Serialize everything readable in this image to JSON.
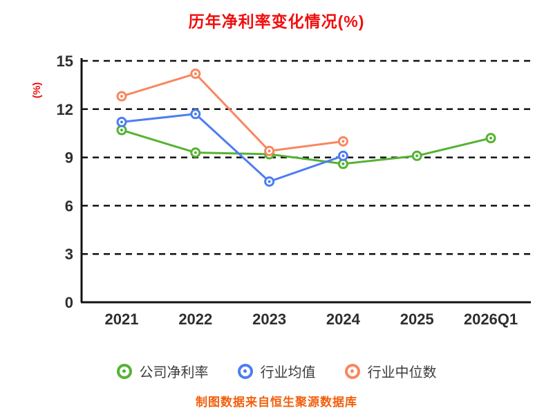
{
  "title": "历年净利率变化情况(%)",
  "ylabel": "(%)",
  "footer": "制图数据来自恒生聚源数据库",
  "colors": {
    "title": "#f20d0d",
    "ylabel": "#f20d0d",
    "footer": "#f2600c",
    "axis": "#111111",
    "tick_label": "#2e2e2e",
    "legend_text": "#3d3d3d"
  },
  "chart_data": {
    "type": "line",
    "categories": [
      "2021",
      "2022",
      "2023",
      "2024",
      "2025",
      "2026Q1"
    ],
    "series": [
      {
        "name": "公司净利率",
        "color": "#54b332",
        "values": [
          10.7,
          9.3,
          9.2,
          8.6,
          9.1,
          10.2
        ]
      },
      {
        "name": "行业均值",
        "color": "#4d7df2",
        "values": [
          11.2,
          11.7,
          7.5,
          9.1,
          null,
          null
        ]
      },
      {
        "name": "行业中位数",
        "color": "#f8875f",
        "values": [
          12.8,
          14.2,
          9.4,
          10.0,
          null,
          null
        ]
      }
    ],
    "ylim": [
      0,
      15
    ],
    "yticks": [
      0,
      3,
      6,
      9,
      12,
      15
    ],
    "grid": "dashed-horizontal",
    "legend_position": "bottom",
    "marker": "ring-with-dot"
  }
}
